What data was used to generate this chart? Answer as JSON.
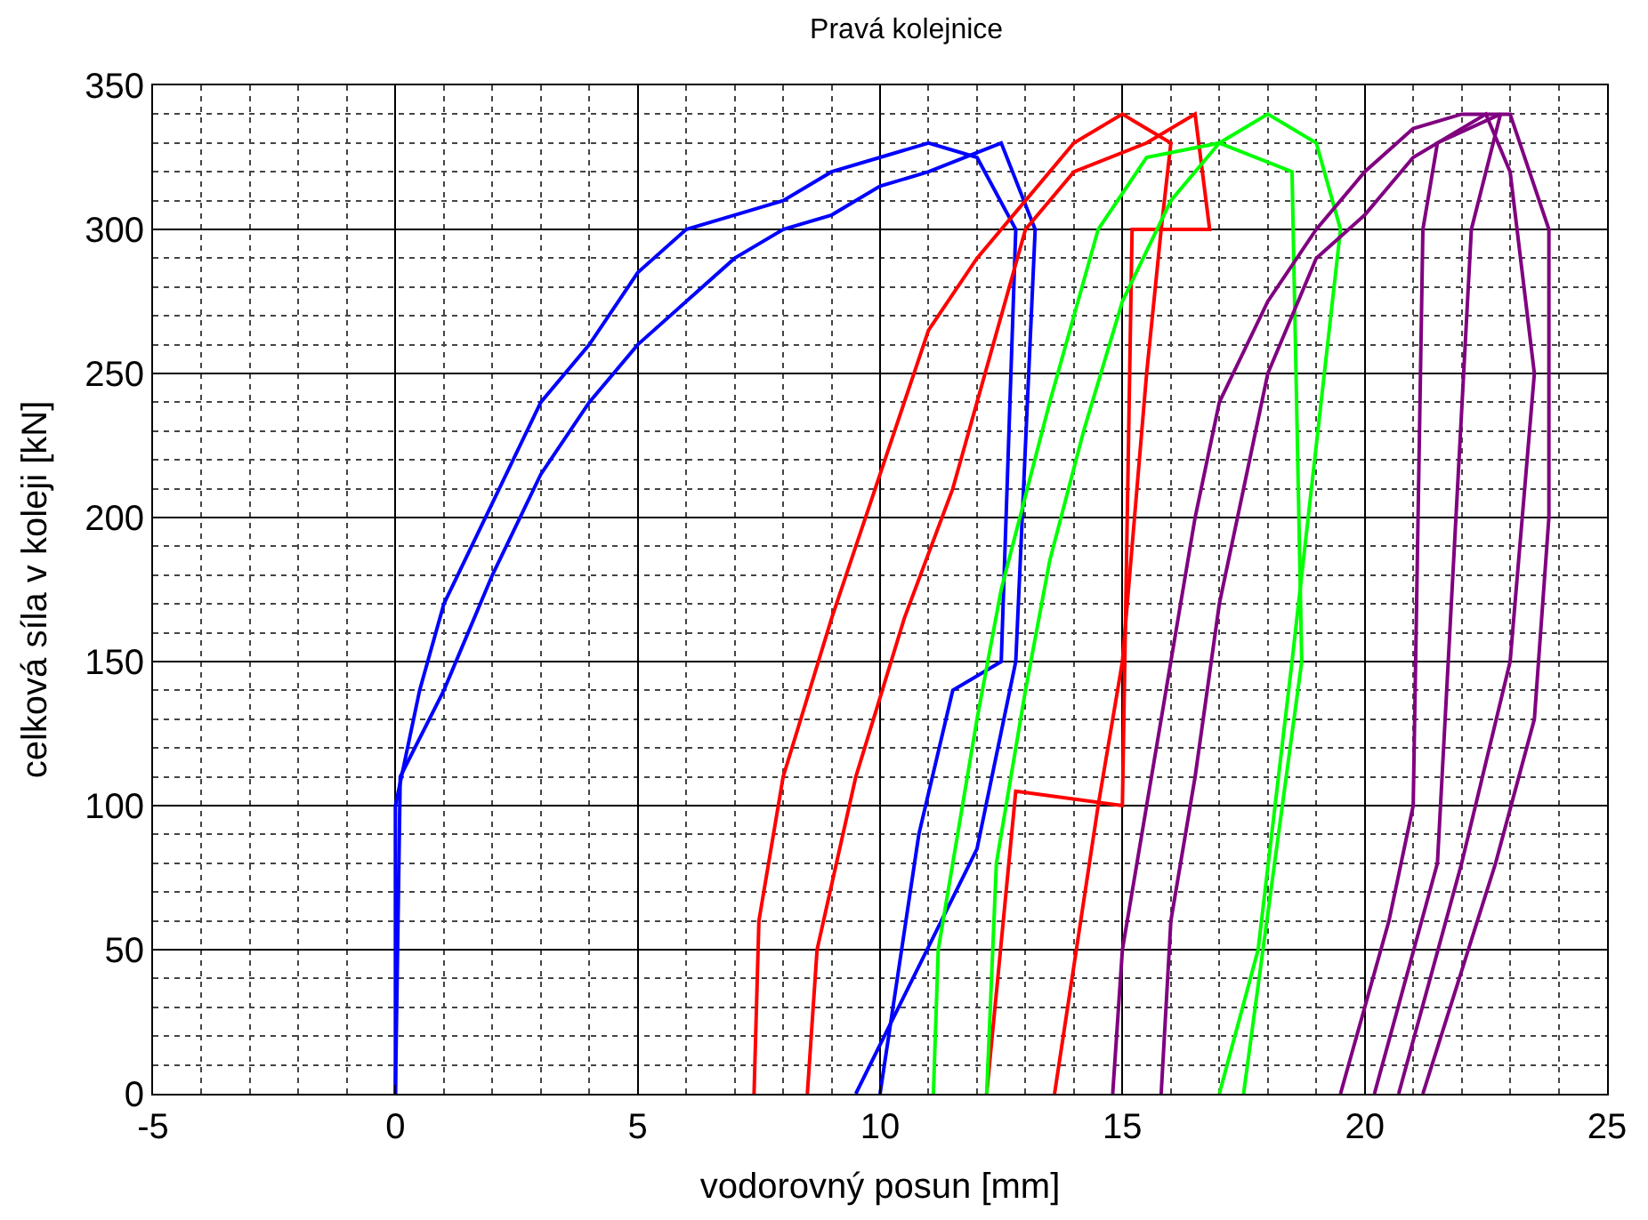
{
  "chart_data": {
    "type": "line",
    "title": "Pravá kolejnice",
    "xlabel": "vodorovný posun [mm]",
    "ylabel": "celková síla v koleji [kN]",
    "xlim": [
      -5,
      25
    ],
    "xticks": [
      -5,
      0,
      5,
      10,
      15,
      20,
      25
    ],
    "ylim": [
      0,
      350
    ],
    "yticks": [
      0,
      50,
      100,
      150,
      200,
      250,
      300,
      350
    ],
    "grid": true,
    "marker": "none",
    "line_style": "solid",
    "series": [
      {
        "color": "#0000ff",
        "x": [
          0,
          0,
          0.5,
          1,
          2,
          3,
          4,
          5,
          6,
          7,
          8,
          9,
          10,
          11,
          12,
          12.8,
          12.5,
          11.5,
          10.8,
          10
        ],
        "values": [
          0,
          100,
          140,
          170,
          205,
          240,
          260,
          285,
          300,
          305,
          310,
          320,
          325,
          330,
          325,
          300,
          150,
          140,
          90,
          0
        ]
      },
      {
        "color": "#0000ff",
        "x": [
          0,
          0.1,
          1,
          2,
          3,
          4,
          5,
          6,
          7,
          8,
          9,
          10,
          11,
          12.5,
          13.2,
          12.8,
          12,
          9.5
        ],
        "values": [
          0,
          110,
          140,
          180,
          215,
          240,
          260,
          275,
          290,
          300,
          305,
          315,
          320,
          330,
          300,
          150,
          85,
          0
        ]
      },
      {
        "color": "#ff0000",
        "x": [
          7.4,
          7.5,
          8,
          9,
          10,
          11,
          12,
          13,
          14,
          15,
          16,
          15.8,
          15.5,
          15,
          14.5,
          13.6
        ],
        "values": [
          0,
          60,
          110,
          165,
          215,
          265,
          290,
          310,
          330,
          340,
          330,
          300,
          250,
          150,
          100,
          0
        ]
      },
      {
        "color": "#ff0000",
        "x": [
          8.5,
          8.7,
          9.5,
          10.5,
          11.5,
          12,
          12.5,
          13,
          14,
          15.5,
          16.5,
          16.8,
          15.2,
          15,
          12.8,
          12.2
        ],
        "values": [
          0,
          50,
          110,
          165,
          210,
          240,
          270,
          300,
          320,
          330,
          340,
          300,
          300,
          100,
          105,
          0
        ]
      },
      {
        "color": "#00ff00",
        "x": [
          11.1,
          11.2,
          12,
          12.5,
          13.5,
          14,
          14.5,
          15.5,
          17,
          18,
          19,
          19.5,
          18.5,
          17.8,
          17
        ],
        "values": [
          0,
          50,
          130,
          175,
          240,
          270,
          300,
          325,
          330,
          340,
          330,
          300,
          150,
          50,
          0
        ]
      },
      {
        "color": "#00ff00",
        "x": [
          12.2,
          12.4,
          13,
          13.5,
          14.2,
          15,
          16,
          17,
          18.5,
          18.7,
          17.5
        ],
        "values": [
          0,
          80,
          140,
          185,
          230,
          275,
          310,
          330,
          320,
          150,
          0
        ]
      },
      {
        "color": "#800080",
        "x": [
          14.8,
          15,
          15.5,
          16,
          16.5,
          17,
          18,
          19,
          20,
          21,
          22,
          23,
          23.8,
          23.8,
          23.5,
          22.7,
          21.2
        ],
        "values": [
          0,
          50,
          100,
          150,
          200,
          240,
          275,
          300,
          320,
          335,
          340,
          340,
          300,
          200,
          130,
          80,
          0
        ]
      },
      {
        "color": "#800080",
        "x": [
          15.8,
          16,
          16.5,
          17,
          17.5,
          18,
          19,
          20,
          21,
          22.5,
          23,
          23.5,
          23,
          22,
          20.7
        ],
        "values": [
          0,
          60,
          110,
          170,
          210,
          250,
          290,
          305,
          325,
          340,
          320,
          250,
          150,
          80,
          0
        ]
      },
      {
        "color": "#800080",
        "x": [
          19.5,
          20.5,
          21,
          21.2,
          21.5,
          22.8,
          22.2,
          21.5,
          20.2
        ],
        "values": [
          0,
          60,
          100,
          300,
          330,
          340,
          300,
          80,
          0
        ]
      }
    ]
  }
}
